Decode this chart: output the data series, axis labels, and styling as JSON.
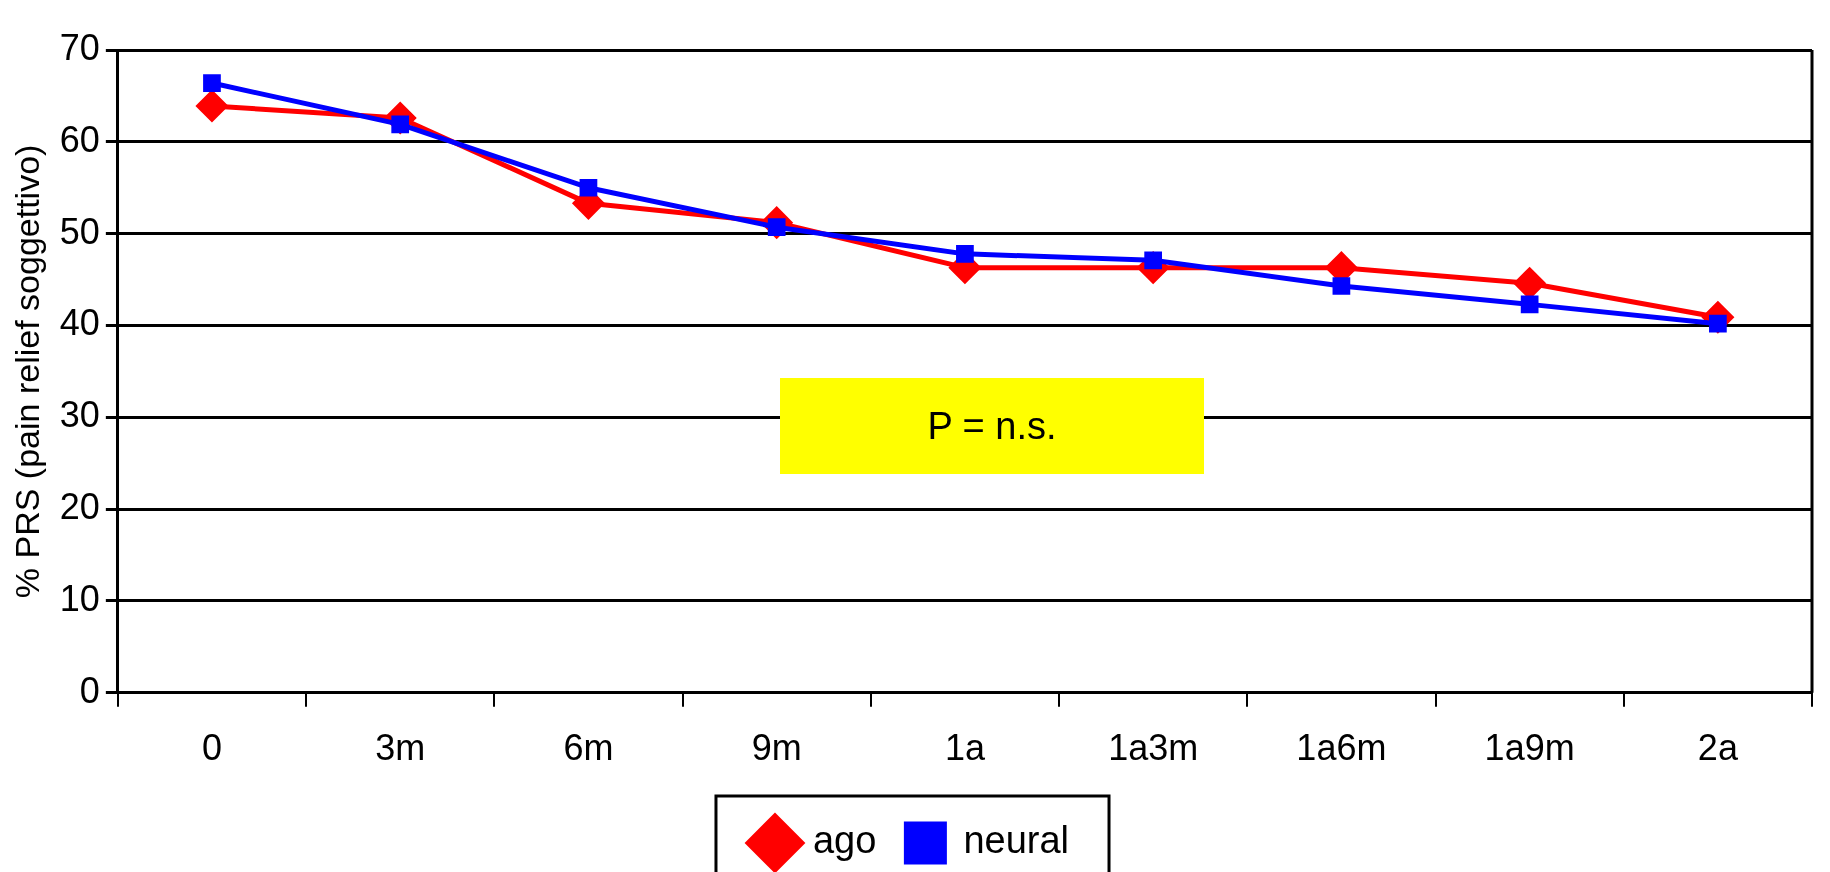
{
  "chart_data": {
    "type": "line",
    "ylabel": "% PRS (pain relief soggettivo)",
    "categories": [
      "0",
      "3m",
      "6m",
      "9m",
      "1a",
      "1a3m",
      "1a6m",
      "1a9m",
      "2a"
    ],
    "series": [
      {
        "name": "ago",
        "color": "#ff0000",
        "marker": "diamond",
        "values": [
          63.9,
          62.6,
          53.3,
          51.2,
          46.3,
          46.3,
          46.3,
          44.6,
          40.9
        ]
      },
      {
        "name": "neural",
        "color": "#0000ff",
        "marker": "square",
        "values": [
          66.4,
          61.9,
          55.0,
          50.7,
          47.8,
          47.1,
          44.3,
          42.3,
          40.2
        ]
      }
    ],
    "ylim": [
      0,
      70
    ],
    "yticks": [
      0,
      10,
      20,
      30,
      40,
      50,
      60,
      70
    ],
    "grid": "y",
    "legend": "bottom",
    "line_style": "solid",
    "annotations": [
      "P = n.s."
    ]
  }
}
